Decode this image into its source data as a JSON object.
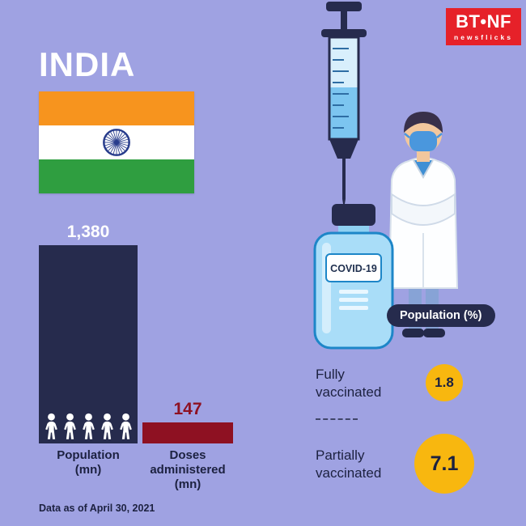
{
  "page": {
    "title": "INDIA",
    "footnote": "Data as of April 30, 2021",
    "background_color": "#9fa2e2"
  },
  "logo": {
    "brand": "BT•NF",
    "tagline": "newsflicks",
    "background_color": "#e62129"
  },
  "chart_data": {
    "type": "bar",
    "categories": [
      "Population\n(mn)",
      "Doses\nadministered\n(mn)"
    ],
    "values": [
      1380,
      147
    ],
    "value_labels": [
      "1,380",
      "147"
    ],
    "bar_colors": [
      "#262b4d",
      "#8e1122"
    ],
    "value_label_colors": [
      "#ffffff",
      "#8e1122"
    ],
    "ylim": [
      0,
      1380
    ]
  },
  "vaccination": {
    "vial_label": "COVID-19",
    "badge": "Population (%)",
    "items": [
      {
        "label": "Fully vaccinated",
        "value": "1.8"
      },
      {
        "label": "Partially vaccinated",
        "value": "7.1"
      }
    ],
    "value_circle_color": "#f8b70f"
  }
}
